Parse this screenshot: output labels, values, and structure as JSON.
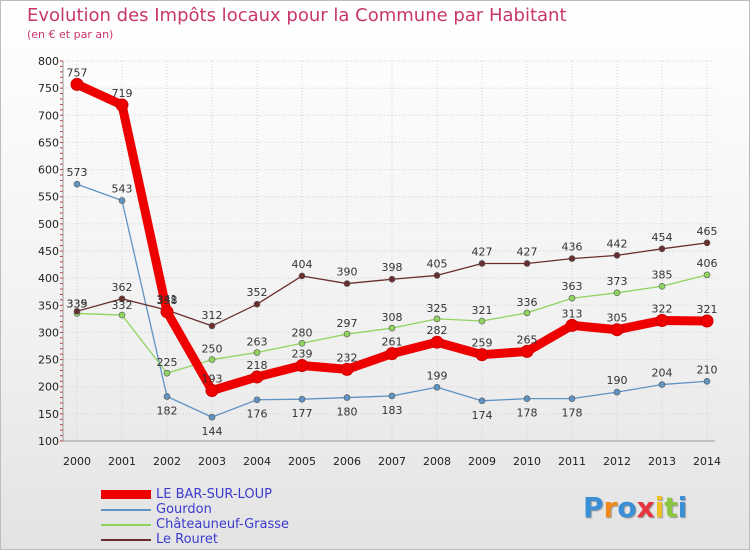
{
  "title": "Evolution des Impôts locaux pour la Commune par Habitant",
  "subtitle": "(en € et par an)",
  "logo_text": "Proxiti",
  "chart_data": {
    "type": "line",
    "categories": [
      "2000",
      "2001",
      "2002",
      "2003",
      "2004",
      "2005",
      "2006",
      "2007",
      "2008",
      "2009",
      "2010",
      "2011",
      "2012",
      "2013",
      "2014"
    ],
    "ylim": [
      100,
      800
    ],
    "yticks": [
      100,
      150,
      200,
      250,
      300,
      350,
      400,
      450,
      500,
      550,
      600,
      650,
      700,
      750,
      800
    ],
    "series": [
      {
        "name": "LE BAR-SUR-LOUP",
        "color": "#ee0000",
        "values": [
          757,
          719,
          338,
          193,
          218,
          239,
          232,
          261,
          282,
          259,
          265,
          313,
          305,
          322,
          321
        ]
      },
      {
        "name": "Gourdon",
        "color": "#5f93c3",
        "values": [
          573,
          543,
          182,
          144,
          176,
          177,
          180,
          183,
          199,
          174,
          178,
          178,
          190,
          204,
          210
        ]
      },
      {
        "name": "Châteauneuf-Grasse",
        "color": "#8fd45f",
        "values": [
          335,
          332,
          225,
          250,
          263,
          280,
          297,
          308,
          325,
          321,
          336,
          363,
          373,
          385,
          406
        ]
      },
      {
        "name": "Le Rouret",
        "color": "#6b2e2e",
        "values": [
          339,
          362,
          341,
          312,
          352,
          404,
          390,
          398,
          405,
          427,
          427,
          436,
          442,
          454,
          465
        ]
      }
    ]
  }
}
